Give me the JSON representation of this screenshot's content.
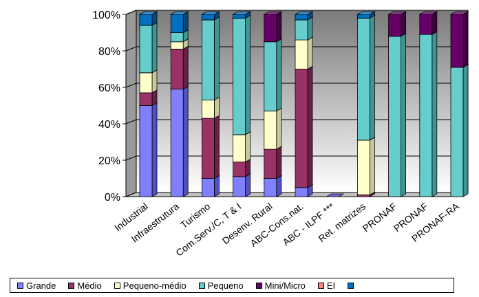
{
  "chart_data": {
    "type": "bar",
    "stacked": true,
    "percent": true,
    "three_d": true,
    "ylim": [
      0,
      100
    ],
    "yticks": [
      "0%",
      "20%",
      "40%",
      "60%",
      "80%",
      "100%"
    ],
    "categories": [
      "Industrial",
      "Infraestrutura",
      "Turismo",
      "Com.Serv./C, T & I",
      "Desenv. Rural",
      "ABC-Cons.nat.",
      "ABC - ILPF ***",
      "Ret. matrizes",
      "PRONAF",
      "PRONAF",
      "PRONAF-RA"
    ],
    "series": [
      {
        "name": "Grande",
        "color": "#8080ff",
        "top": "#a8a8ff",
        "side": "#5050c0",
        "values": [
          50,
          59,
          10,
          11,
          10,
          5,
          0,
          0,
          0,
          0,
          0
        ]
      },
      {
        "name": "Médio",
        "color": "#993366",
        "top": "#b85c8a",
        "side": "#6a1f46",
        "values": [
          7,
          22,
          33,
          8,
          16,
          65,
          0,
          1,
          0,
          0,
          0
        ]
      },
      {
        "name": "Pequeno-médio",
        "color": "#ffffcc",
        "top": "#ffffe6",
        "side": "#c8c89a",
        "values": [
          11,
          4,
          10,
          15,
          21,
          16,
          0,
          30,
          0,
          0,
          0
        ]
      },
      {
        "name": "Pequeno",
        "color": "#66cccc",
        "top": "#99e0e0",
        "side": "#3f9494",
        "values": [
          26,
          5,
          44,
          64,
          38,
          11,
          0,
          67,
          88,
          89,
          71
        ]
      },
      {
        "name": "Mini/Micro",
        "color": "#660066",
        "top": "#8c3d8c",
        "side": "#440044",
        "values": [
          0,
          0,
          0,
          0,
          15,
          0,
          0,
          0,
          12,
          11,
          29
        ]
      },
      {
        "name": "EI",
        "color": "#ff8080",
        "top": "#ffb0b0",
        "side": "#c05050",
        "values": [
          0,
          0,
          0,
          0,
          0,
          0,
          0,
          0,
          0,
          0,
          0
        ]
      },
      {
        "name": "",
        "color": "#0070c0",
        "top": "#3b95d8",
        "side": "#004a80",
        "values": [
          6,
          10,
          3,
          2,
          0,
          3,
          0,
          2,
          0,
          0,
          0
        ]
      }
    ]
  }
}
